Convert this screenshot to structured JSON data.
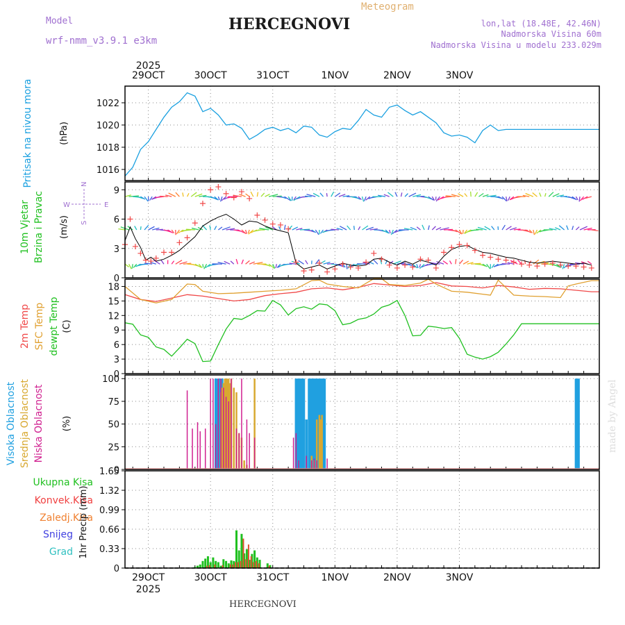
{
  "header": {
    "left_top": "Model",
    "left_model": "wrf-nmm_v3.9.1 e3km",
    "center_sub": "Meteogram",
    "title": "HERCEGNOVI",
    "right_line1": "lon,lat (18.48E, 42.46N)",
    "right_line2": "Nadmorska Visina 60m",
    "right_line3": "Nadmorska Visina u modelu 233.029m",
    "footer": "HERCEGNOVI",
    "watermark": "made by Angel"
  },
  "colors": {
    "purple": "#a070d0",
    "pressure": "#1aa0e0",
    "t2m": "#f04848",
    "sfc": "#e0a030",
    "dew": "#20c020",
    "wind_label": "#20c020",
    "high": "#20a0e0",
    "mid": "#d8a830",
    "low": "#d02090",
    "grid": "#888888"
  },
  "chart_data": [
    {
      "id": "pressure",
      "type": "line",
      "title": "Pritisak na nivou mora",
      "ylabel": "(hPa)",
      "ylim": [
        1015,
        1023.5
      ],
      "yticks": [
        1016,
        1018,
        1020,
        1022
      ],
      "x_labels": [
        "29OCT",
        "30OCT",
        "31OCT",
        "1NOV",
        "2NOV",
        "3NOV"
      ],
      "x_year": "2025",
      "series": [
        {
          "name": "pressure",
          "x": [
            0,
            3,
            6,
            9,
            12,
            15,
            18,
            21,
            24,
            27,
            30,
            33,
            36,
            39,
            42,
            45,
            48,
            51,
            54,
            57,
            60,
            63,
            66,
            69,
            72,
            75,
            78,
            81,
            84,
            87,
            90,
            93,
            96,
            99,
            102,
            105,
            108,
            111,
            114,
            117,
            120,
            123,
            126,
            129,
            132,
            135,
            138,
            141,
            144,
            147,
            150,
            153,
            156,
            159,
            162,
            165,
            168,
            171,
            174,
            177,
            180,
            183
          ],
          "values": [
            1015.4,
            1016.2,
            1017.8,
            1018.5,
            1019.6,
            1020.7,
            1021.6,
            1022.1,
            1022.9,
            1022.6,
            1021.2,
            1021.5,
            1020.9,
            1020.0,
            1020.1,
            1019.7,
            1018.7,
            1019.1,
            1019.6,
            1019.8,
            1019.5,
            1019.7,
            1019.3,
            1019.9,
            1019.8,
            1019.1,
            1018.9,
            1019.4,
            1019.7,
            1019.6,
            1020.4,
            1021.4,
            1020.9,
            1020.7,
            1021.6,
            1021.8,
            1021.3,
            1020.9,
            1021.2,
            1020.7,
            1020.2,
            1019.3,
            1019.0,
            1019.1,
            1018.9,
            1018.4,
            1019.5,
            1020.0,
            1019.5,
            1019.6,
            1019.6,
            1019.6,
            1019.6,
            1019.6,
            1019.6,
            1019.6,
            1019.6,
            1019.6,
            1019.6,
            1019.6,
            1019.6,
            1019.6
          ]
        }
      ]
    },
    {
      "id": "wind",
      "type": "line",
      "title_lines": [
        "10m Vjetar",
        "Brzina i Pravac"
      ],
      "ylabel": "(m/s)",
      "compass": {
        "n": "N",
        "s": "S",
        "w": "W",
        "e": "E"
      },
      "ylim": [
        0,
        9.8
      ],
      "yticks": [
        0,
        3,
        6,
        9
      ],
      "barb_rows": [
        8.3,
        4.9,
        1.4
      ],
      "series": [
        {
          "name": "wind speed",
          "x": [
            0,
            2,
            4,
            6,
            8,
            10,
            12,
            15,
            18,
            21,
            24,
            27,
            30,
            33,
            36,
            39,
            42,
            45,
            48,
            51,
            54,
            57,
            60,
            63,
            66,
            69,
            72,
            75,
            78,
            81,
            84,
            87,
            90,
            93,
            96,
            99,
            102,
            105,
            108,
            111,
            114,
            117,
            120,
            123,
            126,
            129,
            132,
            135,
            138,
            141,
            144,
            147,
            150,
            153,
            156,
            159,
            162,
            165,
            168,
            171,
            174,
            177,
            180
          ],
          "values": [
            3.8,
            5.2,
            4.0,
            3.1,
            1.8,
            2.1,
            1.7,
            1.9,
            2.3,
            2.8,
            3.5,
            4.2,
            5.3,
            5.8,
            6.2,
            6.5,
            6.0,
            5.4,
            5.8,
            5.7,
            5.3,
            5.0,
            4.8,
            4.6,
            1.5,
            0.9,
            1.1,
            1.3,
            0.9,
            1.2,
            1.5,
            1.3,
            1.2,
            1.3,
            1.9,
            2.0,
            1.6,
            1.3,
            1.7,
            1.4,
            1.8,
            1.6,
            1.3,
            2.2,
            2.9,
            3.2,
            3.3,
            2.9,
            2.6,
            2.5,
            2.3,
            2.1,
            2.0,
            1.8,
            1.6,
            1.5,
            1.6,
            1.7,
            1.6,
            1.5,
            1.4,
            1.5,
            1.3
          ]
        },
        {
          "name": "wind gust",
          "x": [
            0,
            2,
            4,
            6,
            8,
            10,
            12,
            15,
            18,
            21,
            24,
            27,
            30,
            33,
            36,
            39,
            42,
            45,
            48,
            51,
            54,
            57,
            60,
            63,
            66,
            69,
            72,
            75,
            78,
            81,
            84,
            87,
            90,
            93,
            96,
            99,
            102,
            105,
            108,
            111,
            114,
            117,
            120,
            123,
            126,
            129,
            132,
            135,
            138,
            141,
            144,
            147,
            150,
            153,
            156,
            159,
            162,
            165,
            168,
            171,
            174,
            177,
            180
          ],
          "values": [
            3.4,
            6.0,
            3.2,
            2.5,
            1.8,
            1.7,
            2.0,
            2.6,
            2.6,
            3.6,
            4.1,
            5.6,
            7.6,
            9.0,
            9.3,
            8.6,
            8.2,
            8.8,
            8.1,
            6.4,
            5.9,
            5.5,
            5.4,
            5.0,
            1.6,
            0.7,
            0.8,
            1.5,
            0.6,
            0.9,
            1.4,
            1.1,
            1.0,
            1.6,
            2.5,
            1.9,
            1.3,
            1.0,
            1.3,
            1.1,
            1.9,
            1.8,
            1.0,
            2.6,
            3.1,
            3.4,
            3.3,
            2.8,
            2.3,
            2.1,
            1.9,
            1.8,
            1.6,
            1.4,
            1.3,
            1.2,
            1.4,
            1.5,
            1.3,
            1.2,
            1.2,
            1.1,
            1.0
          ]
        }
      ]
    },
    {
      "id": "temperature",
      "type": "line",
      "title_lines": [
        "2m Temp",
        "SFC Temp",
        "dewpt Temp"
      ],
      "ylabel": "(C)",
      "ylim": [
        0,
        19.5
      ],
      "yticks": [
        0,
        3,
        6,
        9,
        12,
        15,
        18
      ],
      "series": [
        {
          "name": "2m Temp",
          "x": [
            0,
            6,
            12,
            18,
            24,
            30,
            36,
            42,
            48,
            54,
            60,
            66,
            72,
            78,
            84,
            90,
            96,
            102,
            108,
            114,
            120,
            126,
            132,
            138,
            144,
            150,
            156,
            162,
            168,
            174,
            180,
            183
          ],
          "values": [
            16.3,
            15.3,
            14.9,
            15.6,
            16.3,
            16.0,
            15.5,
            15.0,
            15.3,
            16.1,
            16.5,
            16.8,
            17.5,
            17.7,
            17.3,
            17.8,
            18.6,
            18.3,
            18.0,
            18.2,
            18.8,
            18.1,
            18.0,
            17.7,
            18.2,
            17.9,
            17.4,
            17.6,
            17.5,
            17.2,
            16.9,
            16.9
          ]
        },
        {
          "name": "SFC Temp",
          "x": [
            0,
            6,
            12,
            18,
            24,
            27,
            30,
            36,
            42,
            48,
            54,
            60,
            66,
            72,
            75,
            78,
            84,
            90,
            96,
            99,
            102,
            108,
            114,
            117,
            120,
            126,
            132,
            138,
            141,
            144,
            150,
            156,
            162,
            168,
            171,
            174,
            180,
            183
          ],
          "values": [
            18.0,
            15.3,
            14.6,
            15.3,
            18.5,
            18.4,
            17.0,
            16.5,
            16.6,
            16.8,
            17.0,
            17.2,
            17.5,
            19.2,
            19.3,
            18.5,
            18.0,
            17.7,
            19.6,
            19.6,
            18.4,
            18.2,
            18.7,
            19.5,
            18.5,
            17.0,
            16.8,
            16.4,
            16.2,
            19.3,
            16.2,
            16.0,
            15.9,
            15.7,
            18.1,
            18.5,
            19.2,
            19.2
          ]
        },
        {
          "name": "dewpt Temp",
          "x": [
            0,
            3,
            6,
            9,
            12,
            15,
            18,
            21,
            24,
            27,
            30,
            33,
            36,
            39,
            42,
            45,
            48,
            51,
            54,
            57,
            60,
            63,
            66,
            69,
            72,
            75,
            78,
            81,
            84,
            87,
            90,
            93,
            96,
            99,
            102,
            105,
            108,
            111,
            114,
            117,
            120,
            123,
            126,
            129,
            132,
            135,
            138,
            141,
            144,
            147,
            150,
            153,
            156,
            159,
            162,
            165,
            168,
            171,
            174,
            177,
            180,
            183
          ],
          "values": [
            10.5,
            10.2,
            8.0,
            7.5,
            5.5,
            5.0,
            3.6,
            5.3,
            7.1,
            6.2,
            2.5,
            2.6,
            6.0,
            9.2,
            11.4,
            11.2,
            12.0,
            13.0,
            12.9,
            15.1,
            14.2,
            12.1,
            13.4,
            13.8,
            13.3,
            14.4,
            14.2,
            13.0,
            10.1,
            10.4,
            11.2,
            11.5,
            12.3,
            13.7,
            14.2,
            15.1,
            12.0,
            7.8,
            7.9,
            9.8,
            9.6,
            9.3,
            9.5,
            7.3,
            4.0,
            3.4,
            3.0,
            3.5,
            4.4,
            6.1,
            8.0,
            10.3,
            10.3,
            10.3,
            10.3,
            10.3,
            10.3,
            10.3,
            10.3,
            10.3,
            10.3,
            10.3
          ]
        }
      ]
    },
    {
      "id": "clouds",
      "type": "bar",
      "title_lines": [
        "Visoka Oblacnost",
        "Srednja Oblacnost",
        "Niska Oblacnost"
      ],
      "ylabel": "(%)",
      "ylim": [
        0,
        104
      ],
      "yticks": [
        0,
        25,
        50,
        75,
        100
      ],
      "series": [
        {
          "name": "Visoka Oblacnost",
          "x": [
            35,
            35.5,
            36,
            36.5,
            37,
            37.5,
            38,
            39,
            66,
            66.5,
            67,
            67.5,
            68,
            68.5,
            69,
            70,
            71,
            71.5,
            72,
            72.5,
            73,
            73.5,
            74,
            74.5,
            75,
            75.5,
            76,
            76.5,
            77,
            174,
            174.5,
            175
          ],
          "values": [
            100,
            100,
            90,
            100,
            100,
            100,
            95,
            100,
            100,
            100,
            100,
            100,
            100,
            100,
            100,
            55,
            100,
            100,
            100,
            100,
            100,
            100,
            100,
            100,
            100,
            100,
            100,
            100,
            100,
            100,
            100,
            100
          ]
        },
        {
          "name": "Srednja Oblacnost",
          "x": [
            37,
            37.5,
            38,
            38.5,
            39,
            39.5,
            40,
            40.5,
            41,
            42,
            43,
            44,
            45,
            46,
            47,
            50,
            72,
            73,
            74,
            75,
            75.5,
            76
          ],
          "values": [
            85,
            90,
            95,
            100,
            100,
            100,
            100,
            95,
            100,
            90,
            85,
            40,
            35,
            10,
            5,
            100,
            15,
            10,
            55,
            60,
            55,
            60
          ]
        },
        {
          "name": "Niska Oblacnost",
          "x": [
            0,
            24,
            26,
            28,
            29,
            31,
            33,
            34,
            35,
            36,
            37,
            38,
            39,
            40,
            41,
            43,
            44,
            45,
            47,
            48,
            50,
            65,
            66,
            67,
            70,
            72,
            73,
            74,
            78
          ],
          "values": [
            0,
            87,
            45,
            52,
            42,
            45,
            100,
            100,
            50,
            100,
            100,
            90,
            80,
            75,
            100,
            45,
            40,
            100,
            55,
            40,
            35,
            35,
            40,
            10,
            15,
            10,
            12,
            10,
            12
          ]
        }
      ]
    },
    {
      "id": "precipitation",
      "type": "bar",
      "title_lines": [
        "Ukupna Kisa",
        "Konvek.Kisa",
        "Zaledj.Kisa",
        "Snijeg",
        "Grad"
      ],
      "ylabel": "1hr Precip (mm)",
      "ylim": [
        0,
        1.65
      ],
      "yticks": [
        0,
        0.33,
        0.66,
        0.99,
        1.32,
        1.65
      ],
      "x_labels": [
        "29OCT",
        "30OCT",
        "31OCT",
        "1NOV",
        "2NOV",
        "3NOV"
      ],
      "x_year": "2025",
      "series": [
        {
          "name": "Ukupna Kisa",
          "x": [
            27,
            28,
            29,
            30,
            31,
            32,
            33,
            34,
            35,
            36,
            37,
            38,
            39,
            40,
            41,
            42,
            43,
            44,
            45,
            46,
            47,
            48,
            49,
            50,
            51,
            52,
            55,
            56
          ],
          "values": [
            0.02,
            0.04,
            0.06,
            0.12,
            0.16,
            0.2,
            0.1,
            0.18,
            0.12,
            0.1,
            0.04,
            0.15,
            0.12,
            0.08,
            0.13,
            0.12,
            0.64,
            0.3,
            0.58,
            0.25,
            0.32,
            0.14,
            0.24,
            0.3,
            0.18,
            0.14,
            0.08,
            0.05
          ]
        },
        {
          "name": "Konvek.Kisa",
          "x": [
            31,
            32,
            34,
            37,
            40,
            41,
            42,
            43,
            44,
            45,
            46,
            47,
            48,
            49,
            50,
            51,
            55
          ],
          "values": [
            0.04,
            0.05,
            0.06,
            0.05,
            0.06,
            0.06,
            0.1,
            0.1,
            0.12,
            0.5,
            0.15,
            0.4,
            0.2,
            0.1,
            0.12,
            0.08,
            0.04
          ]
        },
        {
          "name": "Zaledj.Kisa",
          "x": [],
          "values": []
        },
        {
          "name": "Snijeg",
          "x": [],
          "values": []
        },
        {
          "name": "Grad",
          "x": [],
          "values": []
        }
      ]
    }
  ]
}
